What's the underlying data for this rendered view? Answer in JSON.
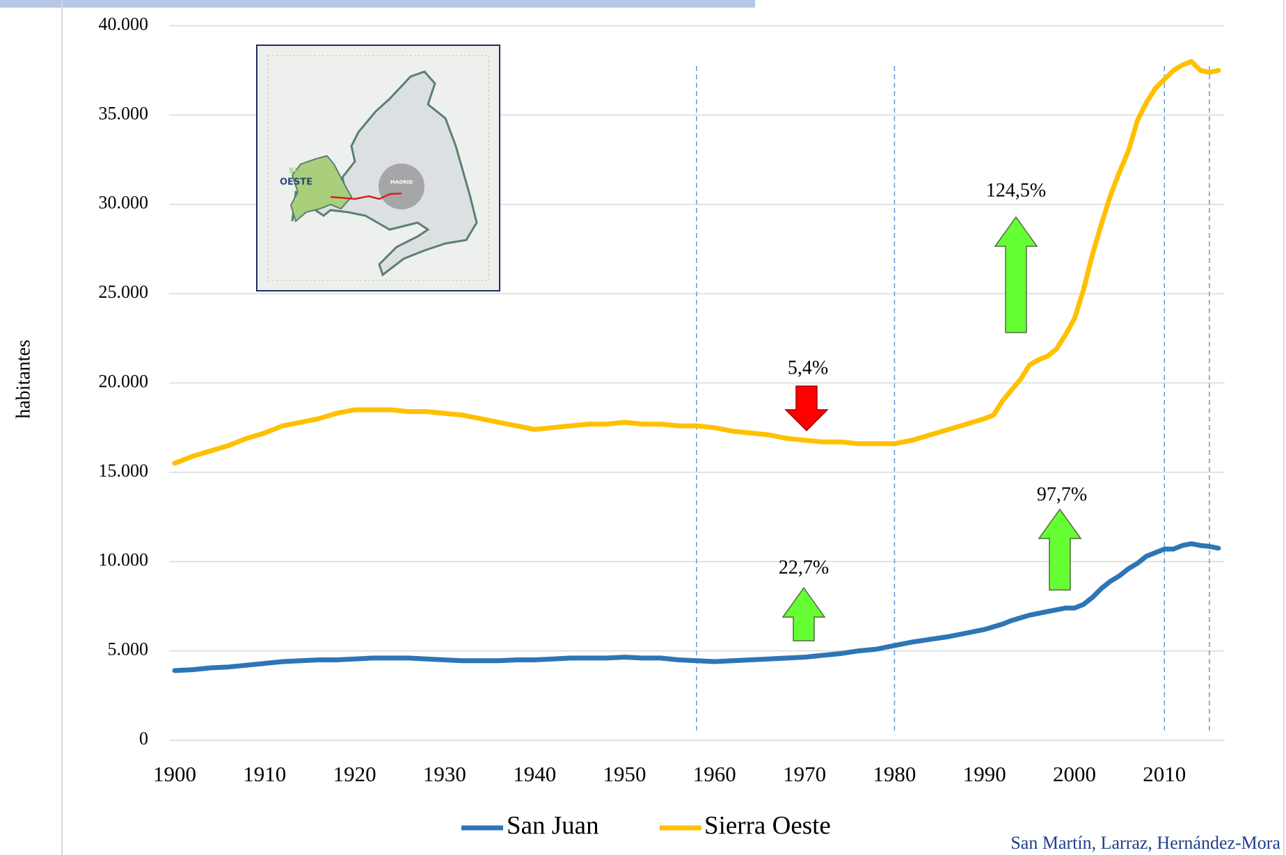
{
  "chart_data": {
    "type": "line",
    "y_label": "habitantes",
    "x": [
      1900,
      1902,
      1904,
      1906,
      1908,
      1910,
      1912,
      1914,
      1916,
      1918,
      1920,
      1922,
      1924,
      1926,
      1928,
      1930,
      1932,
      1934,
      1936,
      1938,
      1940,
      1942,
      1944,
      1946,
      1948,
      1950,
      1952,
      1954,
      1956,
      1958,
      1960,
      1962,
      1964,
      1966,
      1968,
      1970,
      1972,
      1974,
      1976,
      1978,
      1980,
      1982,
      1984,
      1986,
      1988,
      1990,
      1991,
      1992,
      1993,
      1994,
      1995,
      1996,
      1997,
      1998,
      1999,
      2000,
      2001,
      2002,
      2003,
      2004,
      2005,
      2006,
      2007,
      2008,
      2009,
      2010,
      2011,
      2012,
      2013,
      2014,
      2015,
      2016
    ],
    "series": [
      {
        "name": "San Juan",
        "color": "#2e75b6",
        "values": [
          3900,
          3950,
          4050,
          4100,
          4200,
          4300,
          4400,
          4450,
          4500,
          4500,
          4550,
          4600,
          4600,
          4600,
          4550,
          4500,
          4450,
          4450,
          4450,
          4500,
          4500,
          4550,
          4600,
          4600,
          4600,
          4650,
          4600,
          4600,
          4500,
          4450,
          4400,
          4450,
          4500,
          4550,
          4600,
          4650,
          4750,
          4850,
          5000,
          5100,
          5300,
          5500,
          5650,
          5800,
          6000,
          6200,
          6350,
          6500,
          6700,
          6850,
          7000,
          7100,
          7200,
          7300,
          7400,
          7400,
          7600,
          8000,
          8500,
          8900,
          9200,
          9600,
          9900,
          10300,
          10500,
          10700,
          10700,
          10900,
          11000,
          10900,
          10850,
          10750
        ]
      },
      {
        "name": "Sierra Oeste",
        "color": "#ffc000",
        "values": [
          15500,
          15900,
          16200,
          16500,
          16900,
          17200,
          17600,
          17800,
          18000,
          18300,
          18500,
          18500,
          18500,
          18400,
          18400,
          18300,
          18200,
          18000,
          17800,
          17600,
          17400,
          17500,
          17600,
          17700,
          17700,
          17800,
          17700,
          17700,
          17600,
          17600,
          17500,
          17300,
          17200,
          17100,
          16900,
          16800,
          16700,
          16700,
          16600,
          16600,
          16600,
          16800,
          17100,
          17400,
          17700,
          18000,
          18200,
          19000,
          19600,
          20200,
          21000,
          21300,
          21500,
          21900,
          22700,
          23600,
          25200,
          27200,
          28900,
          30500,
          31800,
          33000,
          34700,
          35700,
          36500,
          37000,
          37500,
          37800,
          38000,
          37500,
          37400,
          37500
        ]
      }
    ],
    "xlim": [
      1900,
      2016
    ],
    "xticks": [
      1900,
      1910,
      1920,
      1930,
      1940,
      1950,
      1960,
      1970,
      1980,
      1990,
      2000,
      2010
    ],
    "ylim": [
      0,
      40000
    ],
    "yticks": [
      0,
      {
        "value": 5000,
        "label": "5.000"
      },
      {
        "value": 10000,
        "label": "10.000"
      },
      {
        "value": 15000,
        "label": "15.000"
      },
      {
        "value": 20000,
        "label": "20.000"
      },
      {
        "value": 25000,
        "label": "25.000"
      },
      {
        "value": 30000,
        "label": "30.000"
      },
      {
        "value": 35000,
        "label": "35.000"
      },
      {
        "value": 40000,
        "label": "40.000"
      }
    ],
    "grid": true,
    "reference_lines": [
      1958,
      1980,
      2010,
      2015
    ],
    "annotations": [
      "5,4%",
      "124,5%",
      "22,7%",
      "97,7%"
    ]
  },
  "inset": {
    "labels": [
      "Sierra",
      "OESTE",
      "MADRID"
    ]
  },
  "source": "San Martín, Larraz, Hernández-Mora"
}
